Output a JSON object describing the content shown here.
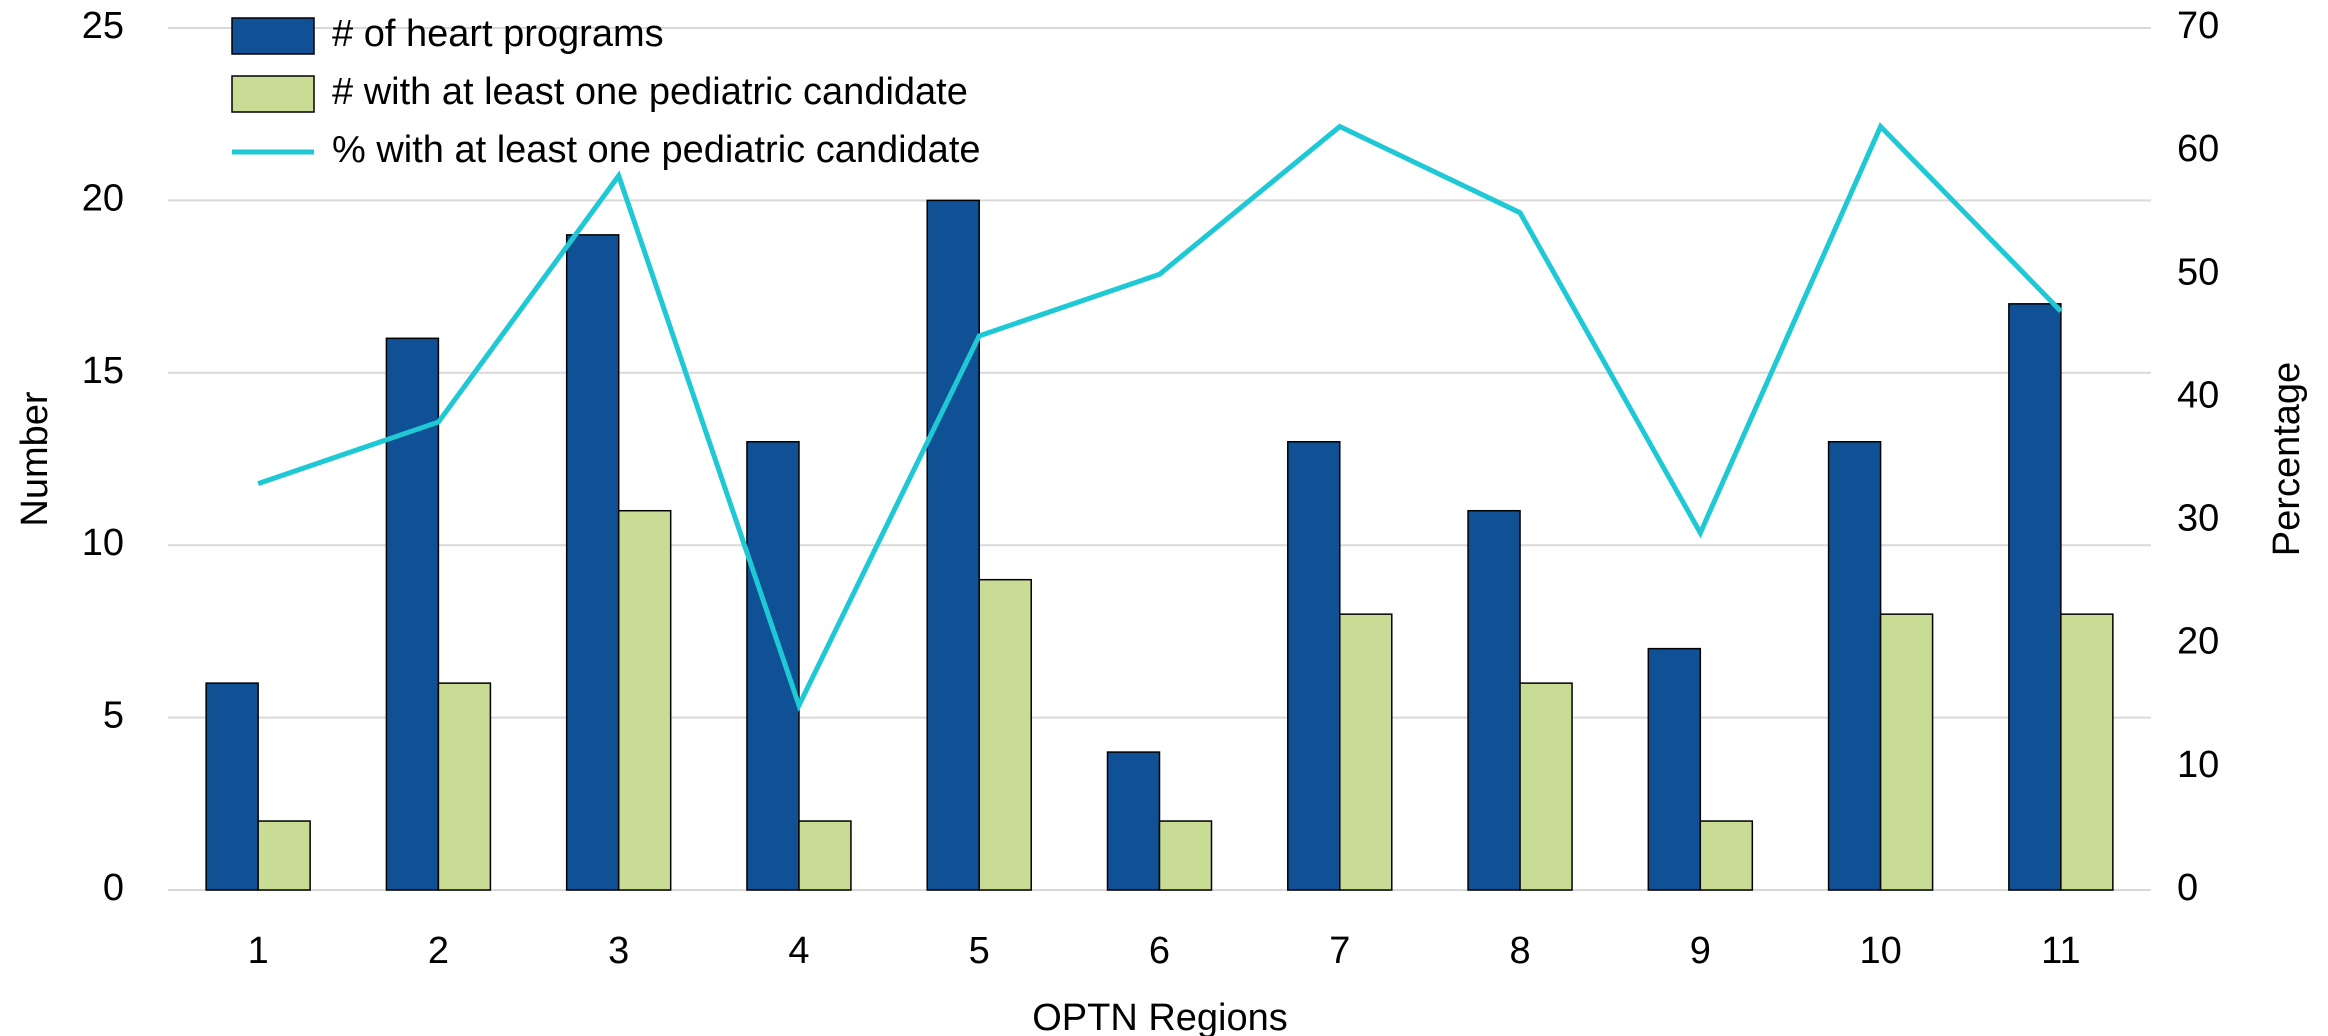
{
  "chart_data": {
    "type": "bar",
    "xlabel": "OPTN Regions",
    "ylabel": "Number",
    "y2label": "Percentage",
    "categories": [
      "1",
      "2",
      "3",
      "4",
      "5",
      "6",
      "7",
      "8",
      "9",
      "10",
      "11"
    ],
    "series": [
      {
        "name": "# of heart programs",
        "color": "#0f5194",
        "values": [
          6,
          16,
          19,
          13,
          20,
          4,
          13,
          11,
          7,
          13,
          17
        ]
      },
      {
        "name": "# with at least one pediatric candidate",
        "color": "#c9dc96",
        "values": [
          2,
          6,
          11,
          2,
          9,
          2,
          8,
          6,
          2,
          8,
          8
        ]
      },
      {
        "name": "% with at least one pediatric candidate",
        "color": "#1ec8d4",
        "type": "line",
        "axis": "y2",
        "values": [
          33,
          38,
          58,
          15,
          45,
          50,
          62,
          55,
          29,
          62,
          47
        ]
      }
    ],
    "ylim": [
      0,
      25
    ],
    "yticks": [
      0,
      5,
      10,
      15,
      20,
      25
    ],
    "y2lim": [
      0,
      70
    ],
    "y2ticks": [
      0,
      10,
      20,
      30,
      40,
      50,
      60,
      70
    ],
    "grid": true,
    "legend": "upper left"
  }
}
